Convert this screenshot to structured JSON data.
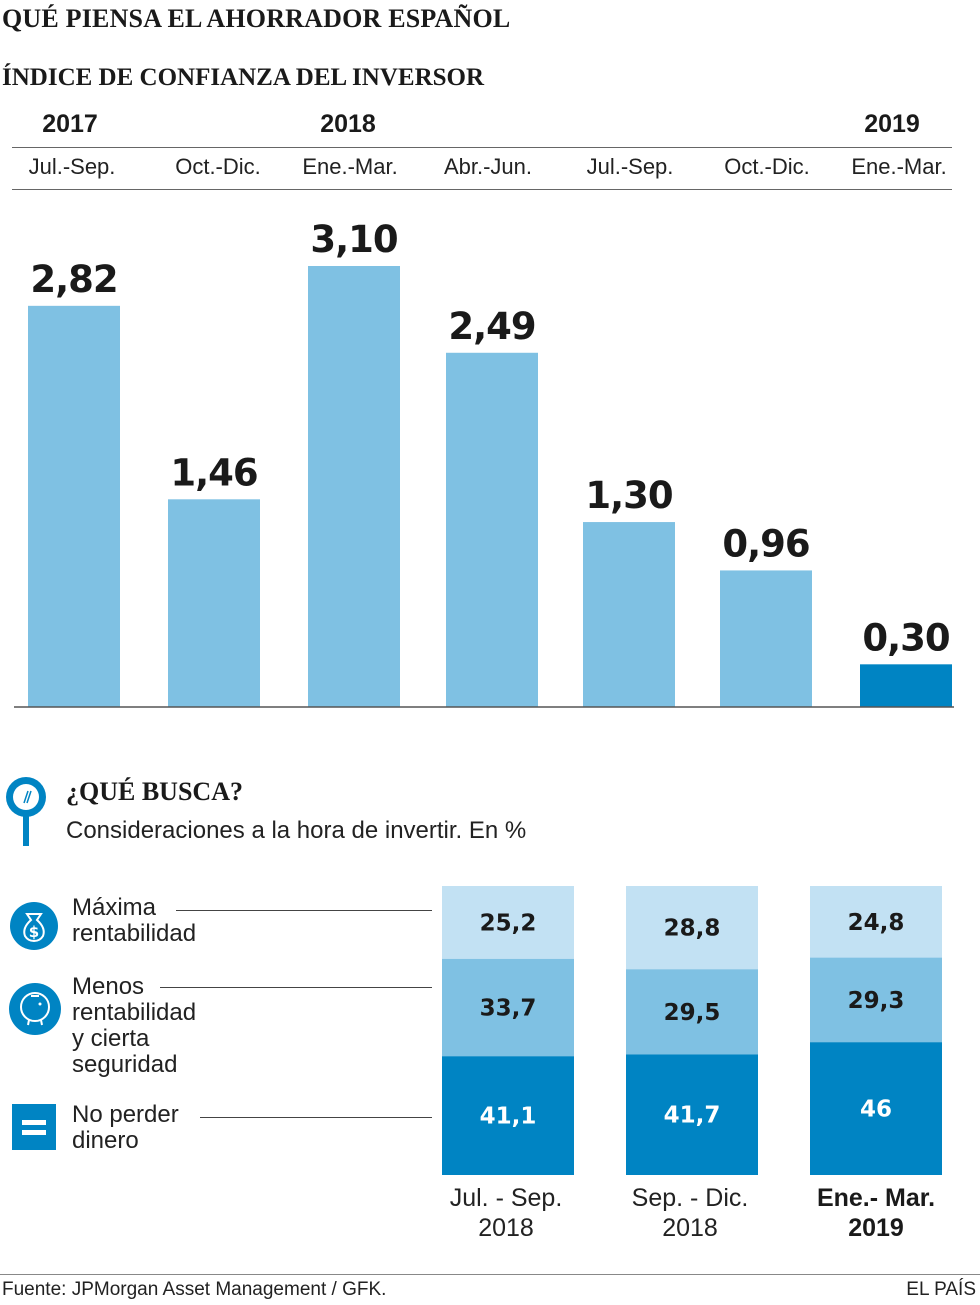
{
  "title": "QUÉ PIENSA EL AHORRADOR ESPAÑOL",
  "chart_data": [
    {
      "type": "bar",
      "title": "ÍNDICE DE CONFIANZA DEL INVERSOR",
      "years": [
        "2017",
        "2018",
        "2019"
      ],
      "categories": [
        "Jul.-Sep.",
        "Oct.-Dic.",
        "Ene.-Mar.",
        "Abr.-Jun.",
        "Jul.-Sep.",
        "Oct.-Dic.",
        "Ene.-Mar."
      ],
      "values": [
        2.82,
        1.46,
        3.1,
        2.49,
        1.3,
        0.96,
        0.3
      ],
      "value_labels": [
        "2,82",
        "1,46",
        "3,10",
        "2,49",
        "1,30",
        "0,96",
        "0,30"
      ],
      "ylim": [
        0,
        3.1
      ],
      "colors": {
        "normal": "#7fc1e3",
        "highlight": "#0084c3"
      },
      "highlight_index": 6
    },
    {
      "type": "bar",
      "stacked": true,
      "title": "¿QUÉ BUSCA?",
      "subtitle": "Consideraciones a la hora de invertir. En %",
      "categories": [
        {
          "line1": "Jul. - Sep.",
          "line2": "2018"
        },
        {
          "line1": "Sep. - Dic.",
          "line2": "2018"
        },
        {
          "line1": "Ene.- Mar.",
          "line2": "2019"
        }
      ],
      "series": [
        {
          "name": "Máxima rentabilidad",
          "name_lines": [
            "Máxima",
            "rentabilidad"
          ],
          "icon": "dollar-bag-icon",
          "color": "#c2e1f3",
          "values": [
            25.2,
            28.8,
            24.8
          ],
          "labels": [
            "25,2",
            "28,8",
            "24,8"
          ]
        },
        {
          "name": "Menos rentabilidad y cierta seguridad",
          "name_lines": [
            "Menos",
            "rentabilidad",
            "y cierta",
            "seguridad"
          ],
          "icon": "piggy-bank-icon",
          "color": "#7fc1e3",
          "values": [
            33.7,
            29.5,
            29.3
          ],
          "labels": [
            "33,7",
            "29,5",
            "29,3"
          ]
        },
        {
          "name": "No perder dinero",
          "name_lines": [
            "No perder",
            "dinero"
          ],
          "icon": "equals-icon",
          "color": "#0084c3",
          "values": [
            41.1,
            41.7,
            46
          ],
          "labels": [
            "41,1",
            "41,7",
            "46"
          ]
        }
      ]
    }
  ],
  "footer": {
    "source": "Fuente: JPMorgan Asset Management / GFK.",
    "brand": "EL PAÍS"
  }
}
